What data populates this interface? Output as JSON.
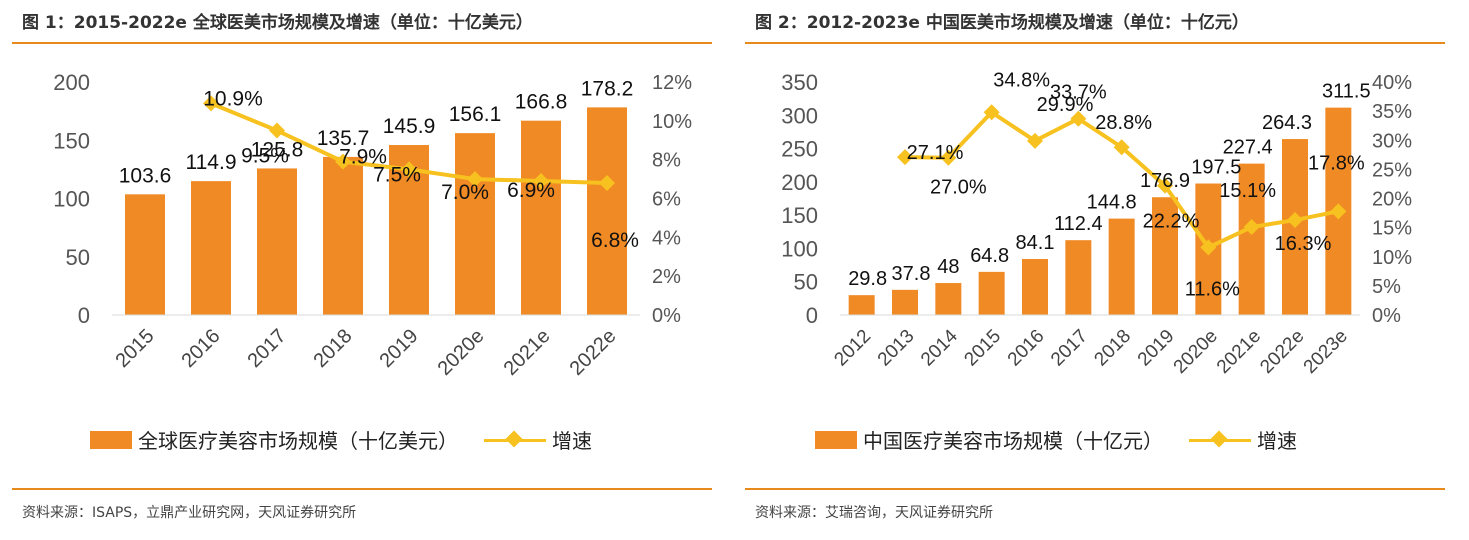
{
  "charts": [
    {
      "title": "图 1：2015-2022e 全球医美市场规模及增速（单位：十亿美元）",
      "source": "资料来源：ISAPS，立鼎产业研究网，天风证券研究所",
      "legend_bar": "全球医疗美容市场规模（十亿美元）",
      "legend_line": "增速"
    },
    {
      "title": "图 2：2012-2023e 中国医美市场规模及增速（单位：十亿元）",
      "source": "资料来源：艾瑞咨询，天风证券研究所",
      "legend_bar": "中国医疗美容市场规模（十亿元）",
      "legend_line": "增速"
    }
  ],
  "colors": {
    "bar": "#f08a24",
    "line": "#f7c21f",
    "rule": "#e8891c"
  },
  "chart_data": [
    {
      "type": "bar",
      "categories": [
        "2015",
        "2016",
        "2017",
        "2018",
        "2019",
        "2020e",
        "2021e",
        "2022e"
      ],
      "series": [
        {
          "name": "全球医疗美容市场规模（十亿美元）",
          "type": "bar",
          "axis": "left",
          "values": [
            103.6,
            114.9,
            125.8,
            135.7,
            145.9,
            156.1,
            166.8,
            178.2
          ],
          "labels": [
            "103.6",
            "114.9",
            "125.8",
            "135.7",
            "145.9",
            "156.1",
            "166.8",
            "178.2"
          ]
        },
        {
          "name": "增速",
          "type": "line",
          "axis": "right",
          "values": [
            null,
            10.9,
            9.5,
            7.9,
            7.5,
            7.0,
            6.9,
            6.8
          ],
          "labels": [
            "",
            "10.9%",
            "9.5%",
            "7.9%",
            "7.5%",
            "7.0%",
            "6.9%",
            "6.8%"
          ]
        }
      ],
      "yticks": [
        "0",
        "50",
        "100",
        "150",
        "200"
      ],
      "ylim": [
        0,
        200
      ],
      "y2ticks": [
        "0%",
        "2%",
        "4%",
        "6%",
        "8%",
        "10%",
        "12%"
      ],
      "y2lim": [
        0,
        12
      ],
      "grid": false,
      "legend": "bottom"
    },
    {
      "type": "bar",
      "categories": [
        "2012",
        "2013",
        "2014",
        "2015",
        "2016",
        "2017",
        "2018",
        "2019",
        "2020e",
        "2021e",
        "2022e",
        "2023e"
      ],
      "series": [
        {
          "name": "中国医疗美容市场规模（十亿元）",
          "type": "bar",
          "axis": "left",
          "values": [
            29.8,
            37.8,
            48,
            64.8,
            84.1,
            112.4,
            144.8,
            176.9,
            197.5,
            227.4,
            264.3,
            311.5
          ],
          "labels": [
            "29.8",
            "37.8",
            "48",
            "64.8",
            "84.1",
            "112.4",
            "144.8",
            "176.9",
            "197.5",
            "227.4",
            "264.3",
            "311.5"
          ]
        },
        {
          "name": "增速",
          "type": "line",
          "axis": "right",
          "values": [
            null,
            27.1,
            27.0,
            34.8,
            29.9,
            33.7,
            28.8,
            22.2,
            11.6,
            15.1,
            16.3,
            17.8
          ],
          "labels": [
            "",
            "27.1%",
            "27.0%",
            "34.8%",
            "29.9%",
            "33.7%",
            "28.8%",
            "22.2%",
            "11.6%",
            "15.1%",
            "16.3%",
            "17.8%"
          ]
        }
      ],
      "yticks": [
        "0",
        "50",
        "100",
        "150",
        "200",
        "250",
        "300",
        "350"
      ],
      "ylim": [
        0,
        350
      ],
      "y2ticks": [
        "0%",
        "5%",
        "10%",
        "15%",
        "20%",
        "25%",
        "30%",
        "35%",
        "40%"
      ],
      "y2lim": [
        0,
        40
      ],
      "grid": false,
      "legend": "bottom"
    }
  ]
}
